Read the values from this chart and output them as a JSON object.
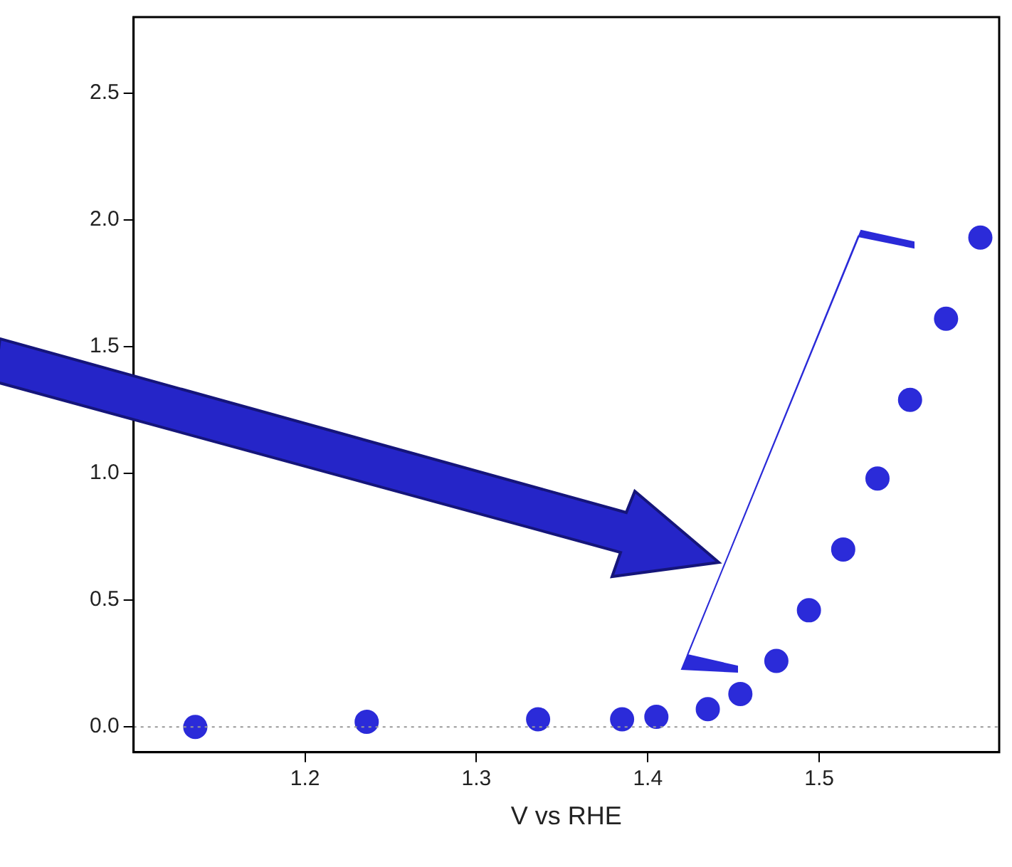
{
  "chart_data": {
    "type": "scatter",
    "xlabel": "V vs RHE",
    "x": [
      1.136,
      1.236,
      1.336,
      1.385,
      1.405,
      1.435,
      1.454,
      1.475,
      1.494,
      1.514,
      1.534,
      1.553,
      1.574,
      1.594
    ],
    "values": [
      0.0,
      0.02,
      0.03,
      0.03,
      0.04,
      0.07,
      0.13,
      0.26,
      0.46,
      0.7,
      0.98,
      1.29,
      1.61,
      1.93
    ],
    "color": "#2b2bd9",
    "marker": "circle",
    "xlim": [
      1.1,
      1.605
    ],
    "xticks": [
      1.2,
      1.3,
      1.4,
      1.5
    ],
    "ylim": [
      -0.1,
      2.8
    ],
    "yticks": [
      {
        "value": 0,
        "label": "0.0"
      },
      {
        "value": 0.5,
        "label": "0.5"
      },
      {
        "value": 1,
        "label": "1.0"
      },
      {
        "value": 1.5,
        "label": "1.5"
      },
      {
        "value": 2,
        "label": "2.0"
      },
      {
        "value": 2.5,
        "label": "2.5"
      }
    ],
    "ref_lines": [
      {
        "axis": "y",
        "value": 0,
        "color": "#999999",
        "line_style": "dotted"
      }
    ],
    "grid": false,
    "legend": false
  }
}
